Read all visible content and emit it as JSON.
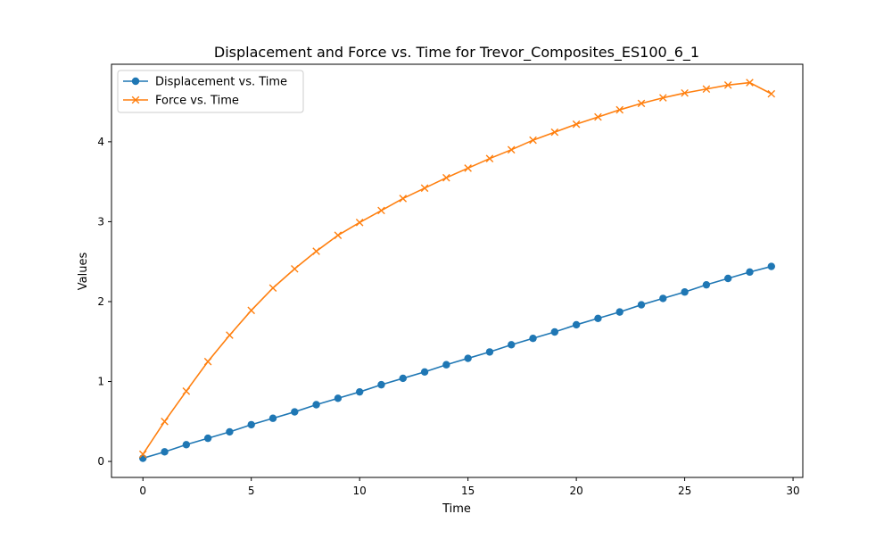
{
  "chart_data": {
    "type": "line",
    "title": "Displacement and Force vs. Time for Trevor_Composites_ES100_6_1",
    "xlabel": "Time",
    "ylabel": "Values",
    "xlim": [
      -1.45,
      30.45
    ],
    "ylim": [
      -0.2,
      4.97
    ],
    "xticks": [
      0,
      5,
      10,
      15,
      20,
      25,
      30
    ],
    "yticks": [
      0,
      1,
      2,
      3,
      4
    ],
    "grid": false,
    "legend_position": "upper-left",
    "x": [
      0,
      1,
      2,
      3,
      4,
      5,
      6,
      7,
      8,
      9,
      10,
      11,
      12,
      13,
      14,
      15,
      16,
      17,
      18,
      19,
      20,
      21,
      22,
      23,
      24,
      25,
      26,
      27,
      28,
      29
    ],
    "series": [
      {
        "name": "Displacement vs. Time",
        "color": "#1f77b4",
        "marker": "circle",
        "values": [
          0.04,
          0.12,
          0.21,
          0.29,
          0.37,
          0.46,
          0.54,
          0.62,
          0.71,
          0.79,
          0.87,
          0.96,
          1.04,
          1.12,
          1.21,
          1.29,
          1.37,
          1.46,
          1.54,
          1.62,
          1.71,
          1.79,
          1.87,
          1.96,
          2.04,
          2.12,
          2.21,
          2.29,
          2.37,
          2.44
        ]
      },
      {
        "name": "Force vs. Time",
        "color": "#ff7f0e",
        "marker": "x",
        "values": [
          0.09,
          0.5,
          0.88,
          1.25,
          1.58,
          1.89,
          2.17,
          2.41,
          2.63,
          2.83,
          2.99,
          3.14,
          3.29,
          3.42,
          3.55,
          3.67,
          3.79,
          3.9,
          4.02,
          4.12,
          4.22,
          4.31,
          4.4,
          4.48,
          4.55,
          4.61,
          4.66,
          4.71,
          4.74,
          4.6
        ]
      }
    ]
  }
}
